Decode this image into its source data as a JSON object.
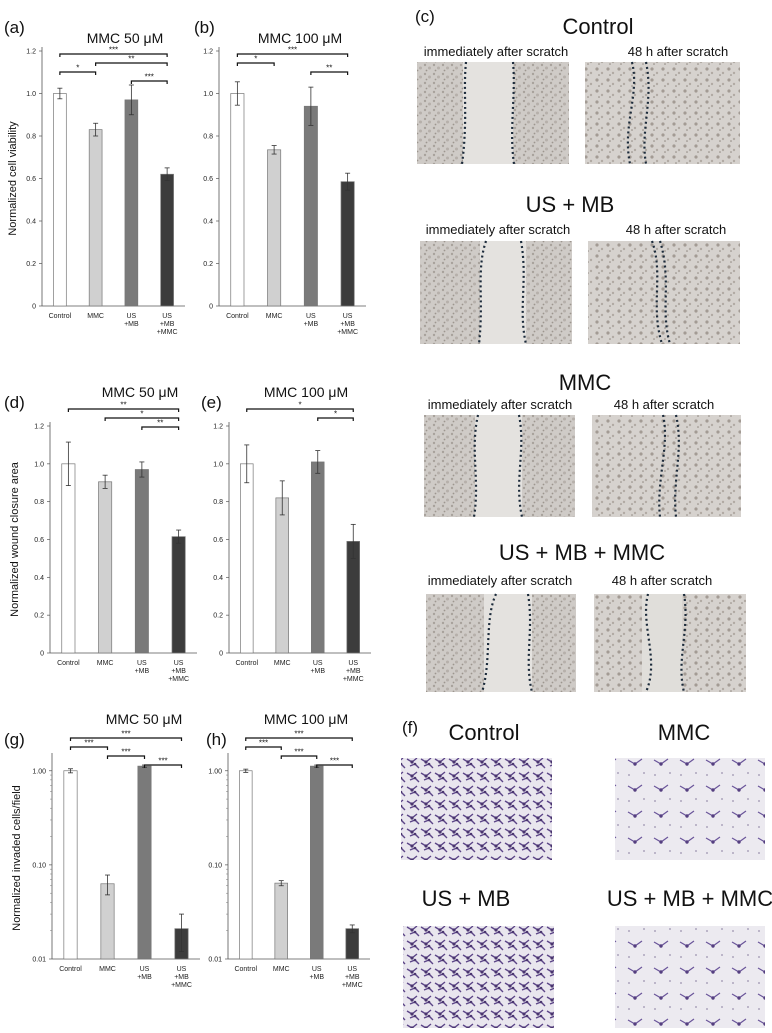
{
  "panel_labels": {
    "a": "(a)",
    "b": "(b)",
    "c": "(c)",
    "d": "(d)",
    "e": "(e)",
    "f": "(f)",
    "g": "(g)",
    "h": "(h)"
  },
  "chart_data": [
    {
      "id": "a",
      "type": "bar",
      "title": "MMC 50 μM",
      "ylabel": "Normalized cell viability",
      "ylim": [
        0,
        1.2
      ],
      "yscale": "linear",
      "yticks": [
        0,
        0.2,
        0.4,
        0.6,
        0.8,
        1.0,
        1.2
      ],
      "ytick_labels": [
        "0",
        "0.2",
        "0.4",
        "0.6",
        "0.8",
        "1.0",
        "1.2"
      ],
      "categories": [
        "Control",
        "MMC",
        "US\n+MB",
        "US\n+MB\n+MMC"
      ],
      "values": [
        1.0,
        0.83,
        0.97,
        0.62
      ],
      "errors": [
        0.025,
        0.03,
        0.07,
        0.03
      ],
      "colors": [
        "#ffffff",
        "#d0d0d0",
        "#7a7a7a",
        "#3c3c3c"
      ],
      "significance": [
        {
          "from": 0,
          "to": 3,
          "label": "***"
        },
        {
          "from": 1,
          "to": 3,
          "label": "**"
        },
        {
          "from": 0,
          "to": 1,
          "label": "*"
        },
        {
          "from": 2,
          "to": 3,
          "label": "***"
        }
      ]
    },
    {
      "id": "b",
      "type": "bar",
      "title": "MMC 100 μM",
      "ylabel": "",
      "ylim": [
        0,
        1.2
      ],
      "yscale": "linear",
      "yticks": [
        0,
        0.2,
        0.4,
        0.6,
        0.8,
        1.0,
        1.2
      ],
      "ytick_labels": [
        "0",
        "0.2",
        "0.4",
        "0.6",
        "0.8",
        "1.0",
        "1.2"
      ],
      "categories": [
        "Control",
        "MMC",
        "US\n+MB",
        "US\n+MB\n+MMC"
      ],
      "values": [
        1.0,
        0.735,
        0.94,
        0.585
      ],
      "errors": [
        0.055,
        0.02,
        0.09,
        0.04
      ],
      "colors": [
        "#ffffff",
        "#d0d0d0",
        "#7a7a7a",
        "#3c3c3c"
      ],
      "significance": [
        {
          "from": 0,
          "to": 3,
          "label": "***"
        },
        {
          "from": 0,
          "to": 1,
          "label": "*"
        },
        {
          "from": 2,
          "to": 3,
          "label": "**"
        }
      ]
    },
    {
      "id": "d",
      "type": "bar",
      "title": "MMC 50 μM",
      "ylabel": "Normalized wound closure area",
      "ylim": [
        0,
        1.2
      ],
      "yscale": "linear",
      "yticks": [
        0,
        0.2,
        0.4,
        0.6,
        0.8,
        1.0,
        1.2
      ],
      "ytick_labels": [
        "0",
        "0.2",
        "0.4",
        "0.6",
        "0.8",
        "1.0",
        "1.2"
      ],
      "categories": [
        "Control",
        "MMC",
        "US\n+MB",
        "US\n+MB\n+MMC"
      ],
      "values": [
        1.0,
        0.905,
        0.97,
        0.615
      ],
      "errors": [
        0.115,
        0.035,
        0.04,
        0.035
      ],
      "colors": [
        "#ffffff",
        "#d0d0d0",
        "#7a7a7a",
        "#3c3c3c"
      ],
      "significance": [
        {
          "from": 0,
          "to": 3,
          "label": "**"
        },
        {
          "from": 1,
          "to": 3,
          "label": "*"
        },
        {
          "from": 2,
          "to": 3,
          "label": "**"
        }
      ]
    },
    {
      "id": "e",
      "type": "bar",
      "title": "MMC 100 μM",
      "ylabel": "",
      "ylim": [
        0,
        1.2
      ],
      "yscale": "linear",
      "yticks": [
        0,
        0.2,
        0.4,
        0.6,
        0.8,
        1.0,
        1.2
      ],
      "ytick_labels": [
        "0",
        "0.2",
        "0.4",
        "0.6",
        "0.8",
        "1.0",
        "1.2"
      ],
      "categories": [
        "Control",
        "MMC",
        "US\n+MB",
        "US\n+MB\n+MMC"
      ],
      "values": [
        1.0,
        0.82,
        1.01,
        0.59
      ],
      "errors": [
        0.1,
        0.09,
        0.06,
        0.09
      ],
      "colors": [
        "#ffffff",
        "#d0d0d0",
        "#7a7a7a",
        "#3c3c3c"
      ],
      "significance": [
        {
          "from": 0,
          "to": 3,
          "label": "*"
        },
        {
          "from": 2,
          "to": 3,
          "label": "*"
        }
      ]
    },
    {
      "id": "g",
      "type": "bar",
      "title": "MMC 50 μM",
      "ylabel": "Normalized invaded cells/field",
      "ylim": [
        0.01,
        1.4
      ],
      "yscale": "log",
      "yticks": [
        0.01,
        0.1,
        1.0
      ],
      "ytick_labels": [
        "0.01",
        "0.10",
        "1.00"
      ],
      "categories": [
        "Control",
        "MMC",
        "US\n+MB",
        "US\n+MB\n+MMC"
      ],
      "values": [
        1.0,
        0.063,
        1.12,
        0.021
      ],
      "errors": [
        0.05,
        0.015,
        0.03,
        0.009
      ],
      "colors": [
        "#ffffff",
        "#d0d0d0",
        "#7a7a7a",
        "#3c3c3c"
      ],
      "significance": [
        {
          "from": 0,
          "to": 3,
          "label": "***"
        },
        {
          "from": 0,
          "to": 1,
          "label": "***"
        },
        {
          "from": 1,
          "to": 2,
          "label": "***"
        },
        {
          "from": 2,
          "to": 3,
          "label": "***"
        }
      ]
    },
    {
      "id": "h",
      "type": "bar",
      "title": "MMC 100 μM",
      "ylabel": "",
      "ylim": [
        0.01,
        1.4
      ],
      "yscale": "log",
      "yticks": [
        0.01,
        0.1,
        1.0
      ],
      "ytick_labels": [
        "0.01",
        "0.10",
        "1.00"
      ],
      "categories": [
        "Control",
        "MMC",
        "US\n+MB",
        "US\n+MB\n+MMC"
      ],
      "values": [
        1.0,
        0.064,
        1.12,
        0.021
      ],
      "errors": [
        0.04,
        0.004,
        0.03,
        0.002
      ],
      "colors": [
        "#ffffff",
        "#d0d0d0",
        "#7a7a7a",
        "#3c3c3c"
      ],
      "significance": [
        {
          "from": 0,
          "to": 3,
          "label": "***"
        },
        {
          "from": 0,
          "to": 1,
          "label": "***"
        },
        {
          "from": 1,
          "to": 2,
          "label": "***"
        },
        {
          "from": 2,
          "to": 3,
          "label": "***"
        }
      ]
    }
  ],
  "scratch_assay": {
    "groups": [
      {
        "title": "Control",
        "before": "immediately after scratch",
        "after": "48 h  after scratch"
      },
      {
        "title": "US + MB",
        "before": "immediately after scratch",
        "after": "48 h  after scratch"
      },
      {
        "title": "MMC",
        "before": "immediately after scratch",
        "after": "48 h  after scratch"
      },
      {
        "title": "US + MB + MMC",
        "before": "immediately after scratch",
        "after": "48 h  after scratch"
      }
    ]
  },
  "invasion_images": {
    "titles": [
      "Control",
      "MMC",
      "US + MB",
      "US + MB + MMC"
    ]
  }
}
